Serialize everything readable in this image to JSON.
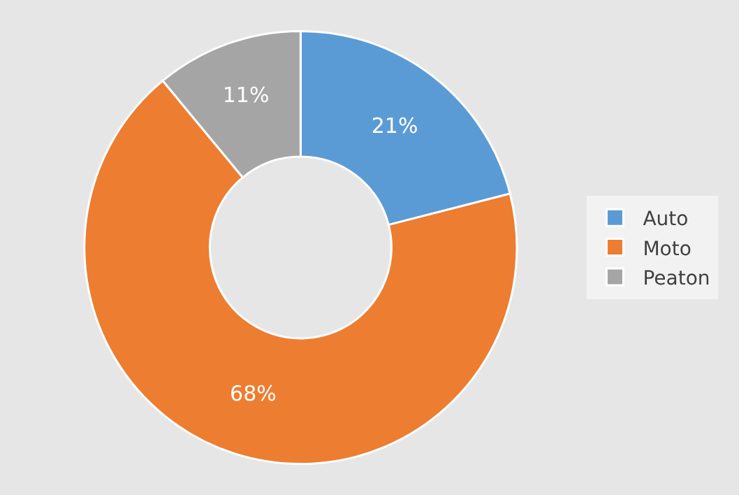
{
  "chart_data": {
    "type": "donut",
    "categories": [
      "Auto",
      "Moto",
      "Peaton"
    ],
    "values": [
      21,
      68,
      11
    ],
    "colors": [
      "#5b9bd5",
      "#ed7d31",
      "#a5a5a5"
    ],
    "value_labels": [
      "21%",
      "68%",
      "11%"
    ],
    "legend": "right"
  }
}
